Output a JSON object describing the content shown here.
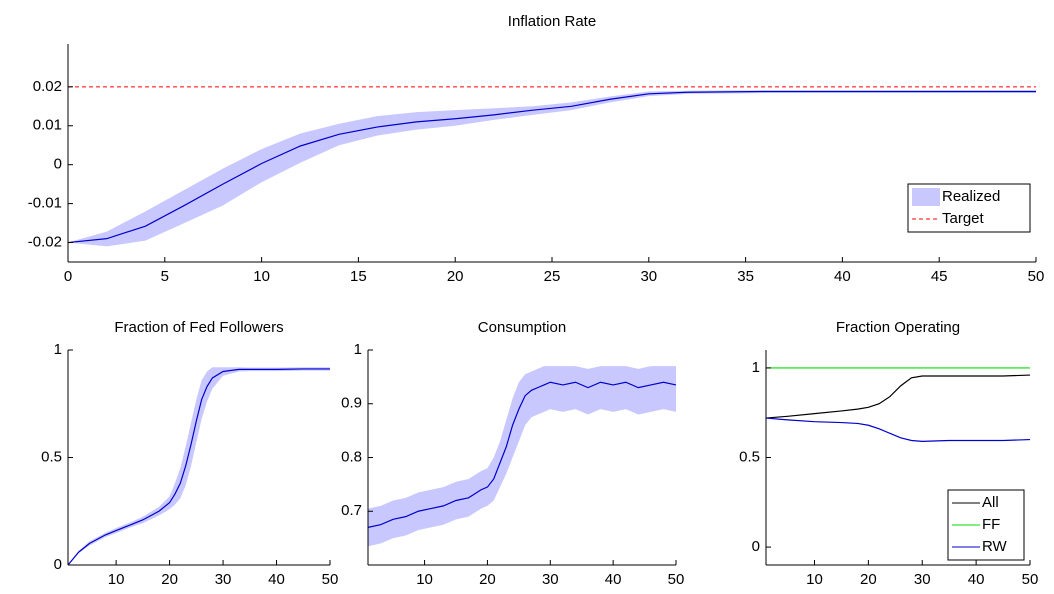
{
  "chart_data": [
    {
      "type": "line",
      "title": "Inflation Rate",
      "x": [
        0,
        2,
        4,
        6,
        8,
        10,
        12,
        14,
        16,
        18,
        20,
        22,
        24,
        26,
        28,
        30,
        32,
        34,
        36,
        38,
        40,
        42,
        44,
        46,
        48,
        50
      ],
      "xlim": [
        0,
        50
      ],
      "xticks": [
        0,
        5,
        10,
        15,
        20,
        25,
        30,
        35,
        40,
        45,
        50
      ],
      "ylim": [
        -0.025,
        0.031
      ],
      "yticks": [
        -0.02,
        -0.01,
        0,
        0.01,
        0.02
      ],
      "legend": "lower right",
      "series": [
        {
          "name": "Realized",
          "color": "#0000cc",
          "band_color": "#c8c8ff",
          "values": [
            -0.02,
            -0.019,
            -0.0158,
            -0.0105,
            -0.005,
            0.0003,
            0.0048,
            0.0078,
            0.0097,
            0.011,
            0.0118,
            0.0128,
            0.014,
            0.015,
            0.0168,
            0.0182,
            0.0186,
            0.0187,
            0.0188,
            0.0188,
            0.0188,
            0.0188,
            0.0188,
            0.0188,
            0.0188,
            0.0188
          ],
          "lower": [
            -0.02,
            -0.021,
            -0.0195,
            -0.015,
            -0.0105,
            -0.0045,
            0.0005,
            0.005,
            0.0075,
            0.009,
            0.01,
            0.0115,
            0.0128,
            0.014,
            0.016,
            0.0176,
            0.0182,
            0.0183,
            0.0184,
            0.0184,
            0.0184,
            0.0184,
            0.0184,
            0.0184,
            0.0184,
            0.0184
          ],
          "upper": [
            -0.02,
            -0.0172,
            -0.012,
            -0.0065,
            -0.001,
            0.004,
            0.008,
            0.0105,
            0.0125,
            0.0135,
            0.014,
            0.0145,
            0.015,
            0.016,
            0.0175,
            0.0188,
            0.019,
            0.0191,
            0.0191,
            0.0191,
            0.0191,
            0.0191,
            0.0191,
            0.0191,
            0.0191,
            0.0191
          ]
        },
        {
          "name": "Target",
          "color": "#ff0000",
          "dash": true,
          "y": 0.02
        }
      ]
    },
    {
      "type": "line",
      "title": "Fraction of Fed Followers",
      "x": [
        1,
        3,
        5,
        8,
        10,
        13,
        15,
        18,
        20,
        21,
        22,
        23,
        24,
        25,
        26,
        27,
        28,
        30,
        33,
        35,
        40,
        45,
        50
      ],
      "xlim": [
        1,
        50
      ],
      "xticks": [
        10,
        20,
        30,
        40,
        50
      ],
      "ylim": [
        0,
        1
      ],
      "yticks": [
        0,
        0.5,
        1
      ],
      "series": [
        {
          "color": "#0000cc",
          "band_color": "#c8c8ff",
          "values": [
            0,
            0.06,
            0.1,
            0.14,
            0.16,
            0.19,
            0.21,
            0.25,
            0.29,
            0.33,
            0.38,
            0.46,
            0.56,
            0.67,
            0.77,
            0.83,
            0.87,
            0.9,
            0.91,
            0.91,
            0.91,
            0.912,
            0.912
          ],
          "lower": [
            0,
            0.055,
            0.09,
            0.13,
            0.148,
            0.178,
            0.195,
            0.23,
            0.26,
            0.28,
            0.31,
            0.37,
            0.46,
            0.57,
            0.68,
            0.76,
            0.82,
            0.88,
            0.9,
            0.902,
            0.902,
            0.904,
            0.904
          ],
          "upper": [
            0,
            0.065,
            0.11,
            0.15,
            0.172,
            0.202,
            0.225,
            0.27,
            0.32,
            0.38,
            0.45,
            0.55,
            0.66,
            0.77,
            0.86,
            0.9,
            0.92,
            0.92,
            0.92,
            0.918,
            0.918,
            0.92,
            0.92
          ]
        }
      ]
    },
    {
      "type": "line",
      "title": "Consumption",
      "x": [
        1,
        3,
        5,
        7,
        9,
        11,
        13,
        15,
        17,
        19,
        20,
        21,
        22,
        23,
        24,
        25,
        26,
        27,
        28,
        29,
        30,
        32,
        34,
        36,
        38,
        40,
        42,
        44,
        46,
        48,
        50
      ],
      "xlim": [
        1,
        50
      ],
      "xticks": [
        10,
        20,
        30,
        40,
        50
      ],
      "ylim": [
        0.6,
        1
      ],
      "yticks": [
        0.7,
        0.8,
        0.9,
        1
      ],
      "series": [
        {
          "color": "#0000cc",
          "band_color": "#c8c8ff",
          "values": [
            0.67,
            0.675,
            0.685,
            0.69,
            0.7,
            0.705,
            0.71,
            0.72,
            0.725,
            0.74,
            0.745,
            0.76,
            0.79,
            0.82,
            0.86,
            0.89,
            0.915,
            0.925,
            0.93,
            0.935,
            0.94,
            0.935,
            0.94,
            0.93,
            0.94,
            0.935,
            0.94,
            0.93,
            0.935,
            0.94,
            0.935
          ],
          "lower": [
            0.635,
            0.64,
            0.65,
            0.655,
            0.665,
            0.67,
            0.675,
            0.685,
            0.69,
            0.705,
            0.71,
            0.72,
            0.745,
            0.77,
            0.8,
            0.83,
            0.86,
            0.875,
            0.88,
            0.885,
            0.89,
            0.885,
            0.89,
            0.88,
            0.89,
            0.885,
            0.89,
            0.88,
            0.885,
            0.89,
            0.885
          ],
          "upper": [
            0.705,
            0.71,
            0.72,
            0.725,
            0.735,
            0.74,
            0.745,
            0.755,
            0.76,
            0.775,
            0.78,
            0.8,
            0.83,
            0.87,
            0.91,
            0.94,
            0.955,
            0.96,
            0.965,
            0.97,
            0.97,
            0.97,
            0.97,
            0.965,
            0.97,
            0.97,
            0.97,
            0.965,
            0.97,
            0.97,
            0.97
          ]
        }
      ]
    },
    {
      "type": "line",
      "title": "Fraction Operating",
      "x": [
        1,
        5,
        10,
        15,
        18,
        20,
        22,
        24,
        26,
        28,
        30,
        35,
        40,
        45,
        50
      ],
      "xlim": [
        1,
        50
      ],
      "xticks": [
        10,
        20,
        30,
        40,
        50
      ],
      "ylim": [
        -0.1,
        1.1
      ],
      "yticks": [
        0,
        0.5,
        1
      ],
      "legend": "lower right",
      "series": [
        {
          "name": "All",
          "color": "#000000",
          "values": [
            0.72,
            0.73,
            0.745,
            0.76,
            0.77,
            0.78,
            0.8,
            0.84,
            0.9,
            0.945,
            0.955,
            0.955,
            0.955,
            0.955,
            0.96
          ]
        },
        {
          "name": "FF",
          "color": "#00dd00",
          "values": [
            1,
            1,
            1,
            1,
            1,
            1,
            1,
            1,
            1,
            1,
            1,
            1,
            1,
            1,
            1
          ]
        },
        {
          "name": "RW",
          "color": "#0000cc",
          "values": [
            0.72,
            0.71,
            0.7,
            0.695,
            0.69,
            0.68,
            0.66,
            0.635,
            0.61,
            0.595,
            0.59,
            0.595,
            0.595,
            0.595,
            0.6
          ]
        }
      ]
    }
  ]
}
